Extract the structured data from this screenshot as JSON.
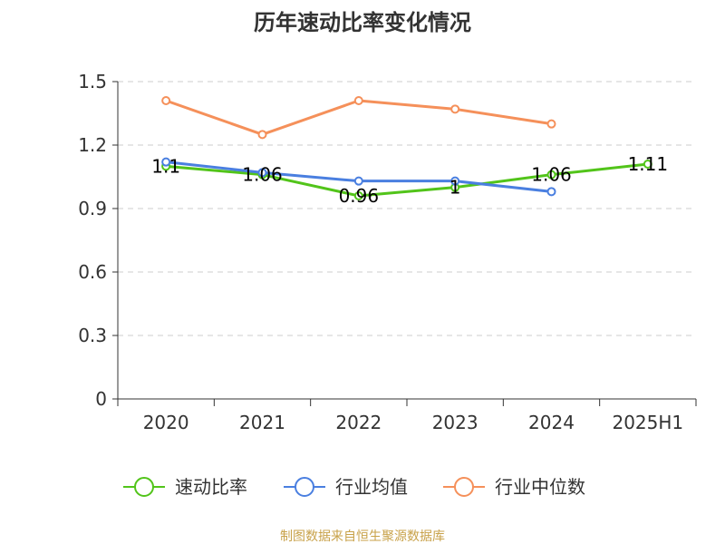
{
  "chart_data": {
    "type": "line",
    "title": "历年速动比率变化情况",
    "categories": [
      "2020",
      "2021",
      "2022",
      "2023",
      "2024",
      "2025H1"
    ],
    "ylim": [
      0,
      1.5
    ],
    "yticks": [
      "0",
      "0.3",
      "0.6",
      "0.9",
      "1.2",
      "1.5"
    ],
    "grid": true,
    "legend_position": "bottom",
    "series": [
      {
        "name": "速动比率",
        "color": "#52c41a",
        "values": [
          1.1,
          1.06,
          0.96,
          1.0,
          1.06,
          1.11
        ],
        "data_labels": [
          "1.1",
          "1.06",
          "0.96",
          "1",
          "1.06",
          "1.11"
        ]
      },
      {
        "name": "行业均值",
        "color": "#4a7fe0",
        "values": [
          1.12,
          1.07,
          1.03,
          1.03,
          0.98,
          null
        ]
      },
      {
        "name": "行业中位数",
        "color": "#f5905a",
        "values": [
          1.41,
          1.25,
          1.41,
          1.37,
          1.3,
          null
        ]
      }
    ]
  },
  "source_note": "制图数据来自恒生聚源数据库"
}
